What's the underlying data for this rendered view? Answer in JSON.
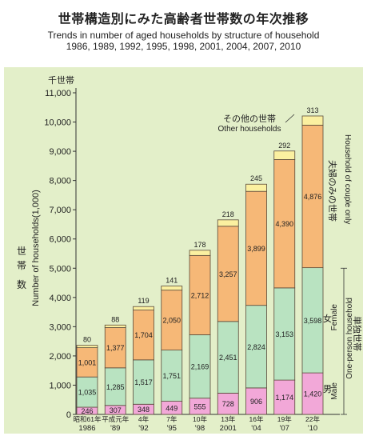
{
  "page": {
    "title_jp": "世帯構造別にみた高齢者世帯数の年次推移",
    "title_en_1": "Trends in number of aged households by structure of household",
    "title_en_2": "1986, 1989, 1992, 1995, 1998, 2001, 2004, 2007, 2010"
  },
  "chart_data": {
    "type": "bar",
    "stacked": true,
    "unit_label": "千世帯",
    "ylabel_jp": "世帯数",
    "ylabel_en": "Number of households(1,000)",
    "ylim": [
      0,
      11000
    ],
    "yticks": [
      "0",
      "1,000",
      "2,000",
      "3,000",
      "4,000",
      "5,000",
      "6,000",
      "7,000",
      "8,000",
      "9,000",
      "10,000",
      "11,000"
    ],
    "yticks_values": [
      0,
      1000,
      2000,
      3000,
      4000,
      5000,
      6000,
      7000,
      8000,
      9000,
      10000,
      11000
    ],
    "categories": [
      {
        "top": "昭和61年",
        "bottom": "1986"
      },
      {
        "top": "平成元年",
        "bottom": "'89"
      },
      {
        "top": "4年",
        "bottom": "'92"
      },
      {
        "top": "7年",
        "bottom": "'95"
      },
      {
        "top": "10年",
        "bottom": "'98"
      },
      {
        "top": "13年",
        "bottom": "2001"
      },
      {
        "top": "16年",
        "bottom": "'04"
      },
      {
        "top": "19年",
        "bottom": "'07"
      },
      {
        "top": "22年",
        "bottom": "'10"
      }
    ],
    "series": [
      {
        "key": "male",
        "values": [
          246,
          307,
          348,
          449,
          555,
          728,
          906,
          1174,
          1420
        ],
        "labels": [
          "246",
          "307",
          "348",
          "449",
          "555",
          "728",
          "906",
          "1,174",
          "1,420"
        ],
        "color": "#f2a8d8"
      },
      {
        "key": "female",
        "values": [
          1035,
          1285,
          1517,
          1751,
          2169,
          2451,
          2824,
          3153,
          3598
        ],
        "labels": [
          "1,035",
          "1,285",
          "1,517",
          "1,751",
          "2,169",
          "2,451",
          "2,824",
          "3,153",
          "3,598"
        ],
        "color": "#b9e3c1"
      },
      {
        "key": "couple",
        "values": [
          1001,
          1377,
          1704,
          2050,
          2712,
          3257,
          3899,
          4390,
          4876
        ],
        "labels": [
          "1,001",
          "1,377",
          "1,704",
          "2,050",
          "2,712",
          "3,257",
          "3,899",
          "4,390",
          "4,876"
        ],
        "color": "#f6b877"
      },
      {
        "key": "other",
        "values": [
          80,
          88,
          119,
          141,
          178,
          218,
          245,
          292,
          313
        ],
        "labels": [
          "80",
          "88",
          "119",
          "141",
          "178",
          "218",
          "245",
          "292",
          "313"
        ],
        "color": "#fbf0a0"
      }
    ],
    "annotations": {
      "other_jp": "その他の世帯",
      "other_en": "Other households",
      "couple_jp": "夫婦のみの世帯",
      "couple_en": "Household of couple only",
      "one_person_jp": "単独世帯",
      "one_person_en": "One-person household",
      "female_jp": "女",
      "female_en": "Female",
      "male_jp": "男",
      "male_en": "Male"
    },
    "colors": {
      "plot_background": "#e3efc9",
      "bar_outline": "#5a4a3a",
      "axis": "#333333"
    }
  }
}
